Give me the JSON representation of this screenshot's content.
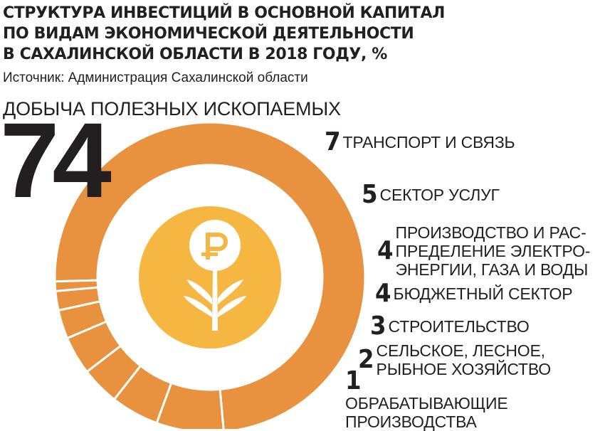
{
  "header": {
    "title_lines": [
      "СТРУКТУРА ИНВЕСТИЦИЙ В ОСНОВНОЙ КАПИТАЛ",
      "ПО ВИДАМ ЭКОНОМИЧЕСКОЙ ДЕЯТЕЛЬНОСТИ",
      "В САХАЛИНСКОЙ ОБЛАСТИ В 2018 ГОДУ, %"
    ],
    "source": "Источник: Администрация Сахалинской области"
  },
  "center_icon": "ruble-flower-icon",
  "colors": {
    "ring": "#e8913f",
    "center_circle": "#f5b642",
    "icon": "#ffffff",
    "separator": "#ffffff",
    "text": "#231f20"
  },
  "chart_data": {
    "type": "pie",
    "variant": "donut",
    "title": "СТРУКТУРА ИНВЕСТИЦИЙ В ОСНОВНОЙ КАПИТАЛ ПО ВИДАМ ЭКОНОМИЧЕСКОЙ ДЕЯТЕЛЬНОСТИ В САХАЛИНСКОЙ ОБЛАСТИ В 2018 ГОДУ, %",
    "unit": "%",
    "slices": [
      {
        "label": "ДОБЫЧА ПОЛЕЗНЫХ ИСКОПАЕМЫХ",
        "label_lines": [
          "ДОБЫЧА ПОЛЕЗНЫХ ИСКОПАЕМЫХ"
        ],
        "value": 74,
        "value_text": "74"
      },
      {
        "label": "ТРАНСПОРТ И СВЯЗЬ",
        "label_lines": [
          "ТРАНСПОРТ И СВЯЗЬ"
        ],
        "value": 7,
        "value_text": "7"
      },
      {
        "label": "СЕКТОР УСЛУГ",
        "label_lines": [
          "СЕКТОР УСЛУГ"
        ],
        "value": 5,
        "value_text": "5"
      },
      {
        "label": "ПРОИЗВОДСТВО И РАС-ПРЕДЕЛЕНИЕ ЭЛЕКТРО-ЭНЕРГИИ, ГАЗА И ВОДЫ",
        "label_lines": [
          "ПРОИЗВОДСТВО И РАС-",
          "ПРЕДЕЛЕНИЕ ЭЛЕКТРО-",
          "ЭНЕРГИИ, ГАЗА И ВОДЫ"
        ],
        "value": 4,
        "value_text": "4"
      },
      {
        "label": "БЮДЖЕТНЫЙ СЕКТОР",
        "label_lines": [
          "БЮДЖЕТНЫЙ СЕКТОР"
        ],
        "value": 4,
        "value_text": "4"
      },
      {
        "label": "СТРОИТЕЛЬСТВО",
        "label_lines": [
          "СТРОИТЕЛЬСТВО"
        ],
        "value": 3,
        "value_text": "3"
      },
      {
        "label": "СЕЛЬСКОЕ, ЛЕСНОЕ, РЫБНОЕ ХОЗЯЙСТВО",
        "label_lines": [
          "СЕЛЬСКОЕ, ЛЕСНОЕ,",
          "РЫБНОЕ ХОЗЯЙСТВО"
        ],
        "value": 2,
        "value_text": "2"
      },
      {
        "label": "ОБРАБАТЫВАЮЩИЕ ПРОИЗВОДСТВА",
        "label_lines": [
          "ОБРАБАТЫВАЮЩИЕ",
          "ПРОИЗВОДСТВА"
        ],
        "value": 1,
        "value_text": "1"
      }
    ]
  }
}
